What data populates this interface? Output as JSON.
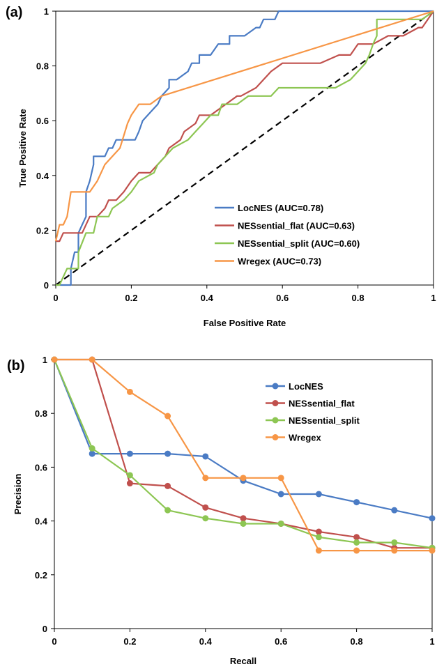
{
  "chart_data": [
    {
      "type": "line",
      "panel_label": "(a)",
      "xlabel": "False Positive Rate",
      "ylabel": "True Positive Rate",
      "xlim": [
        0,
        1
      ],
      "ylim": [
        0,
        1
      ],
      "xticks": [
        "0",
        "0.2",
        "0.4",
        "0.6",
        "0.8",
        "1"
      ],
      "yticks": [
        "0",
        "0.2",
        "0.4",
        "0.6",
        "0.8",
        "1"
      ],
      "grid": false,
      "legend_position": "bottom-right",
      "diagonal": true,
      "series": [
        {
          "name": "LocNES (AUC=0.78)",
          "color": "#4a7bc4",
          "x": [
            0.0,
            0.03,
            0.04,
            0.04,
            0.05,
            0.06,
            0.06,
            0.07,
            0.08,
            0.08,
            0.09,
            0.1,
            0.1,
            0.13,
            0.14,
            0.15,
            0.16,
            0.17,
            0.17,
            0.21,
            0.22,
            0.23,
            0.25,
            0.27,
            0.28,
            0.3,
            0.3,
            0.32,
            0.35,
            0.36,
            0.38,
            0.38,
            0.41,
            0.43,
            0.44,
            0.46,
            0.46,
            0.5,
            0.53,
            0.54,
            0.55,
            0.58,
            0.59,
            1.0
          ],
          "y": [
            0.0,
            0.0,
            0.0,
            0.06,
            0.12,
            0.12,
            0.19,
            0.22,
            0.25,
            0.34,
            0.38,
            0.44,
            0.47,
            0.47,
            0.5,
            0.5,
            0.53,
            0.53,
            0.53,
            0.53,
            0.56,
            0.6,
            0.63,
            0.66,
            0.69,
            0.72,
            0.75,
            0.75,
            0.78,
            0.81,
            0.81,
            0.84,
            0.84,
            0.88,
            0.88,
            0.88,
            0.91,
            0.91,
            0.94,
            0.94,
            0.97,
            0.97,
            1.0,
            1.0
          ]
        },
        {
          "name": "NESsential_flat (AUC=0.63)",
          "color": "#c0504d",
          "x": [
            0.0,
            0.01,
            0.02,
            0.03,
            0.04,
            0.05,
            0.06,
            0.07,
            0.09,
            0.11,
            0.13,
            0.14,
            0.16,
            0.18,
            0.2,
            0.22,
            0.25,
            0.27,
            0.29,
            0.3,
            0.33,
            0.34,
            0.37,
            0.38,
            0.39,
            0.41,
            0.45,
            0.48,
            0.49,
            0.53,
            0.55,
            0.57,
            0.6,
            0.65,
            0.68,
            0.7,
            0.75,
            0.78,
            0.8,
            0.84,
            0.88,
            0.91,
            0.92,
            0.96,
            0.97,
            1.0
          ],
          "y": [
            0.16,
            0.16,
            0.19,
            0.19,
            0.19,
            0.19,
            0.19,
            0.19,
            0.25,
            0.25,
            0.28,
            0.31,
            0.31,
            0.34,
            0.38,
            0.41,
            0.41,
            0.44,
            0.47,
            0.5,
            0.53,
            0.56,
            0.59,
            0.62,
            0.62,
            0.62,
            0.66,
            0.69,
            0.69,
            0.72,
            0.75,
            0.78,
            0.81,
            0.81,
            0.81,
            0.81,
            0.84,
            0.84,
            0.88,
            0.88,
            0.91,
            0.91,
            0.91,
            0.94,
            0.94,
            1.0
          ]
        },
        {
          "name": "NESsential_split (AUC=0.60)",
          "color": "#8dc653",
          "x": [
            0.0,
            0.01,
            0.02,
            0.03,
            0.04,
            0.05,
            0.06,
            0.06,
            0.08,
            0.09,
            0.1,
            0.11,
            0.14,
            0.15,
            0.18,
            0.2,
            0.22,
            0.26,
            0.27,
            0.29,
            0.31,
            0.35,
            0.37,
            0.39,
            0.41,
            0.43,
            0.44,
            0.46,
            0.48,
            0.51,
            0.55,
            0.57,
            0.59,
            0.63,
            0.68,
            0.71,
            0.74,
            0.78,
            0.8,
            0.82,
            0.83,
            0.84,
            0.85,
            0.85,
            0.93,
            0.97,
            1.0
          ],
          "y": [
            0.0,
            0.0,
            0.03,
            0.06,
            0.06,
            0.06,
            0.06,
            0.12,
            0.19,
            0.19,
            0.19,
            0.25,
            0.25,
            0.28,
            0.31,
            0.34,
            0.38,
            0.41,
            0.44,
            0.47,
            0.5,
            0.53,
            0.56,
            0.59,
            0.62,
            0.62,
            0.66,
            0.66,
            0.66,
            0.69,
            0.69,
            0.69,
            0.72,
            0.72,
            0.72,
            0.72,
            0.72,
            0.75,
            0.78,
            0.81,
            0.84,
            0.88,
            0.91,
            0.97,
            0.97,
            0.97,
            1.0
          ]
        },
        {
          "name": "Wregex (AUC=0.73)",
          "color": "#f79646",
          "x": [
            0.0,
            0.01,
            0.02,
            0.03,
            0.04,
            0.05,
            0.07,
            0.09,
            0.11,
            0.13,
            0.15,
            0.17,
            0.19,
            0.2,
            0.22,
            0.25,
            0.28,
            1.0
          ],
          "y": [
            0.16,
            0.22,
            0.22,
            0.25,
            0.34,
            0.34,
            0.34,
            0.34,
            0.38,
            0.44,
            0.47,
            0.5,
            0.59,
            0.62,
            0.66,
            0.66,
            0.69,
            1.0
          ]
        }
      ]
    },
    {
      "type": "line",
      "panel_label": "(b)",
      "xlabel": "Recall",
      "ylabel": "Precision",
      "xlim": [
        0,
        1
      ],
      "ylim": [
        0,
        1
      ],
      "xticks": [
        "0",
        "0.2",
        "0.4",
        "0.6",
        "0.8",
        "1"
      ],
      "yticks": [
        "0",
        "0.2",
        "0.4",
        "0.6",
        "0.8",
        "1"
      ],
      "grid": false,
      "legend_position": "top-right",
      "markers": true,
      "series": [
        {
          "name": "LocNES",
          "color": "#4a7bc4",
          "x": [
            0,
            0.1,
            0.2,
            0.3,
            0.4,
            0.5,
            0.6,
            0.7,
            0.8,
            0.9,
            1.0
          ],
          "y": [
            1.0,
            0.65,
            0.65,
            0.65,
            0.64,
            0.55,
            0.5,
            0.5,
            0.47,
            0.44,
            0.41
          ]
        },
        {
          "name": "NESsential_flat",
          "color": "#c0504d",
          "x": [
            0,
            0.1,
            0.2,
            0.3,
            0.4,
            0.5,
            0.6,
            0.7,
            0.8,
            0.9,
            1.0
          ],
          "y": [
            1.0,
            1.0,
            0.54,
            0.53,
            0.45,
            0.41,
            0.39,
            0.36,
            0.34,
            0.3,
            0.3
          ]
        },
        {
          "name": "NESsential_split",
          "color": "#8dc653",
          "x": [
            0,
            0.1,
            0.2,
            0.3,
            0.4,
            0.5,
            0.6,
            0.7,
            0.8,
            0.9,
            1.0
          ],
          "y": [
            1.0,
            0.67,
            0.57,
            0.44,
            0.41,
            0.39,
            0.39,
            0.34,
            0.32,
            0.32,
            0.3
          ]
        },
        {
          "name": "Wregex",
          "color": "#f79646",
          "x": [
            0,
            0.1,
            0.2,
            0.3,
            0.4,
            0.5,
            0.6,
            0.7,
            0.8,
            0.9,
            1.0
          ],
          "y": [
            1.0,
            1.0,
            0.88,
            0.79,
            0.56,
            0.56,
            0.56,
            0.29,
            0.29,
            0.29,
            0.29
          ]
        }
      ]
    }
  ]
}
